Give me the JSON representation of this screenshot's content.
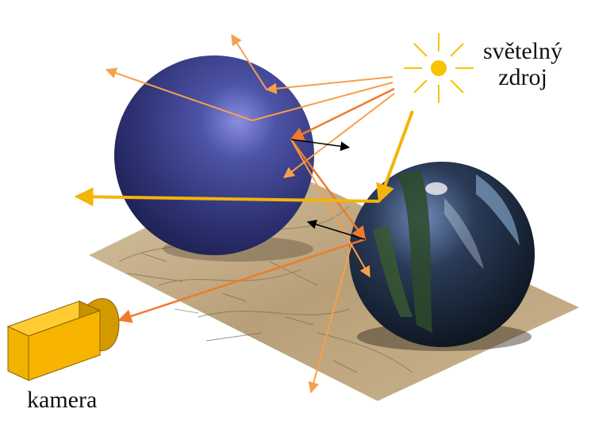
{
  "labels": {
    "light_source_line1": "světelný",
    "light_source_line2": "zdroj",
    "camera": "kamera"
  },
  "colors": {
    "ray_light": "#f7a04a",
    "ray_medium": "#f07a2a",
    "ray_yellow": "#f4b40a",
    "ray_black": "#000000",
    "sun": "#f6c400",
    "diffuse_sphere": "#3b3f86",
    "mirror_sphere": "#1b2436",
    "camera_body": "#f7b400",
    "ground": "#c9b38c"
  },
  "icons": {
    "light_source": "sun-icon",
    "camera": "camera-icon"
  }
}
